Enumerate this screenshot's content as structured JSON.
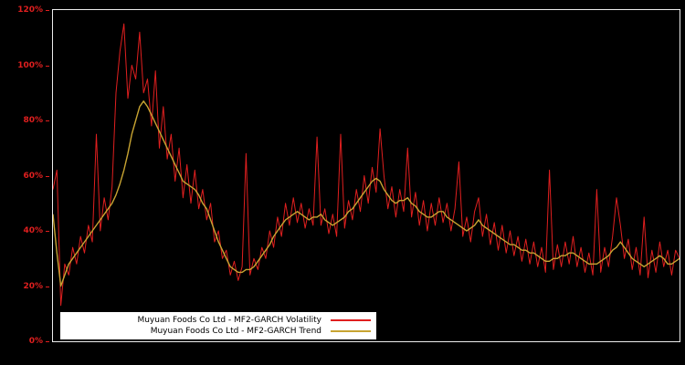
{
  "chart_data": {
    "type": "line",
    "title": "",
    "xlabel": "",
    "ylabel": "",
    "ylim": [
      0,
      120
    ],
    "grid": false,
    "legend_position": "bottom-left",
    "plot_background": "#000000",
    "frame_color": "#ededed",
    "tick_label_color": "#e01f1f",
    "y_ticks": [
      {
        "value": 0,
        "label": "0%"
      },
      {
        "value": 20,
        "label": "20%"
      },
      {
        "value": 40,
        "label": "40%"
      },
      {
        "value": 60,
        "label": "60%"
      },
      {
        "value": 80,
        "label": "80%"
      },
      {
        "value": 100,
        "label": "100%"
      },
      {
        "value": 120,
        "label": "120%"
      }
    ],
    "series": [
      {
        "name": "Muyuan Foods Co Ltd - MF2-GARCH Volatility",
        "color": "#e01f1f",
        "values": [
          55,
          62,
          13,
          28,
          24,
          34,
          28,
          38,
          32,
          42,
          36,
          75,
          40,
          52,
          44,
          56,
          90,
          105,
          115,
          88,
          100,
          95,
          112,
          90,
          95,
          78,
          98,
          70,
          85,
          66,
          75,
          58,
          70,
          52,
          64,
          50,
          62,
          48,
          55,
          44,
          50,
          36,
          40,
          30,
          33,
          24,
          29,
          22,
          27,
          68,
          24,
          30,
          26,
          34,
          30,
          40,
          34,
          45,
          38,
          50,
          42,
          52,
          43,
          50,
          41,
          48,
          42,
          74,
          42,
          48,
          39,
          46,
          38,
          75,
          41,
          51,
          44,
          55,
          47,
          60,
          50,
          63,
          54,
          77,
          60,
          48,
          56,
          45,
          55,
          47,
          70,
          45,
          54,
          42,
          51,
          40,
          50,
          42,
          52,
          43,
          50,
          40,
          48,
          65,
          38,
          45,
          36,
          47,
          52,
          38,
          46,
          35,
          43,
          33,
          42,
          32,
          40,
          31,
          38,
          29,
          37,
          28,
          36,
          27,
          34,
          25,
          62,
          26,
          35,
          27,
          36,
          28,
          38,
          27,
          34,
          25,
          32,
          24,
          55,
          25,
          34,
          27,
          38,
          52,
          42,
          30,
          37,
          26,
          34,
          24,
          45,
          23,
          33,
          25,
          36,
          27,
          33,
          24,
          33,
          30
        ]
      },
      {
        "name": "Muyuan Foods Co Ltd - MF2-GARCH Trend",
        "color": "#c8a432",
        "values": [
          46,
          32,
          20,
          24,
          28,
          30,
          32,
          34,
          36,
          38,
          40,
          42,
          44,
          46,
          48,
          50,
          53,
          57,
          62,
          68,
          75,
          80,
          85,
          87,
          85,
          82,
          79,
          76,
          73,
          70,
          67,
          64,
          61,
          58,
          57,
          56,
          55,
          53,
          50,
          48,
          44,
          40,
          36,
          33,
          30,
          27,
          26,
          25,
          25,
          26,
          26,
          27,
          29,
          31,
          33,
          35,
          38,
          40,
          42,
          44,
          45,
          46,
          47,
          46,
          45,
          44,
          45,
          45,
          46,
          44,
          43,
          42,
          43,
          44,
          45,
          47,
          48,
          50,
          52,
          54,
          56,
          58,
          59,
          58,
          55,
          53,
          51,
          50,
          51,
          51,
          52,
          50,
          49,
          47,
          46,
          45,
          45,
          46,
          47,
          47,
          45,
          44,
          43,
          42,
          41,
          40,
          41,
          42,
          44,
          42,
          41,
          40,
          39,
          38,
          37,
          36,
          35,
          35,
          34,
          33,
          33,
          32,
          32,
          31,
          30,
          29,
          29,
          30,
          30,
          31,
          31,
          32,
          32,
          31,
          30,
          29,
          28,
          28,
          28,
          29,
          30,
          31,
          33,
          34,
          36,
          34,
          32,
          30,
          29,
          28,
          27,
          28,
          29,
          30,
          31,
          30,
          28,
          28,
          29,
          30
        ]
      }
    ]
  }
}
